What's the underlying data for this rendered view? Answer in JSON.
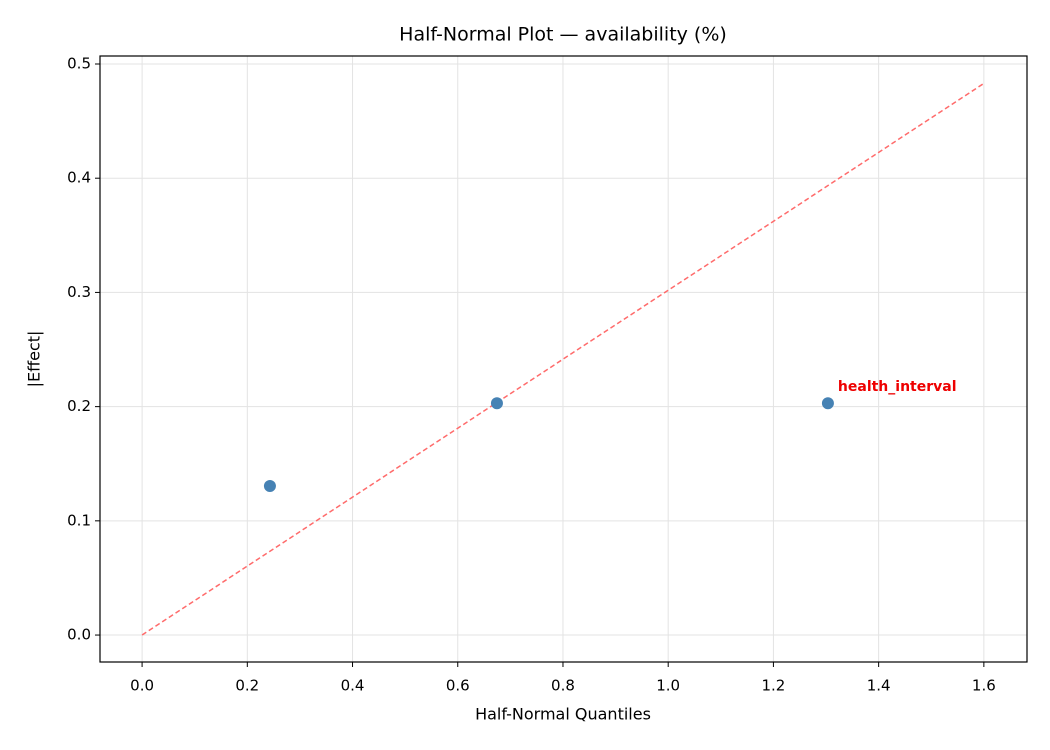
{
  "chart_data": {
    "type": "scatter",
    "title": "Half-Normal Plot — availability (%)",
    "x_label": "Half-Normal Quantiles",
    "y_label": "|Effect|",
    "series": [
      {
        "x": [
          0.243,
          0.6745,
          1.3036
        ],
        "values": [
          0.1305,
          0.203,
          0.203
        ],
        "color": "#4682b4"
      }
    ],
    "reference_line": {
      "x": [
        0,
        1.6
      ],
      "values": [
        0,
        0.483
      ],
      "color": "#ff6b6b",
      "dashed": true
    },
    "annotations": [
      {
        "text": "health_interval",
        "x": 1.3036,
        "y": 0.203,
        "color": "#ee0000"
      }
    ],
    "xlim": [
      -0.08,
      1.682
    ],
    "ylim": [
      -0.0236,
      0.507
    ],
    "xticks": [
      {
        "value": 0,
        "label": "0.0"
      },
      0.2,
      0.4,
      0.6,
      0.8,
      {
        "value": 1,
        "label": "1.0"
      },
      1.2,
      1.4,
      1.6
    ],
    "yticks": [
      {
        "value": 0,
        "label": "0.0"
      },
      0.1,
      0.2,
      0.3,
      0.4,
      0.5
    ],
    "grid": true
  }
}
